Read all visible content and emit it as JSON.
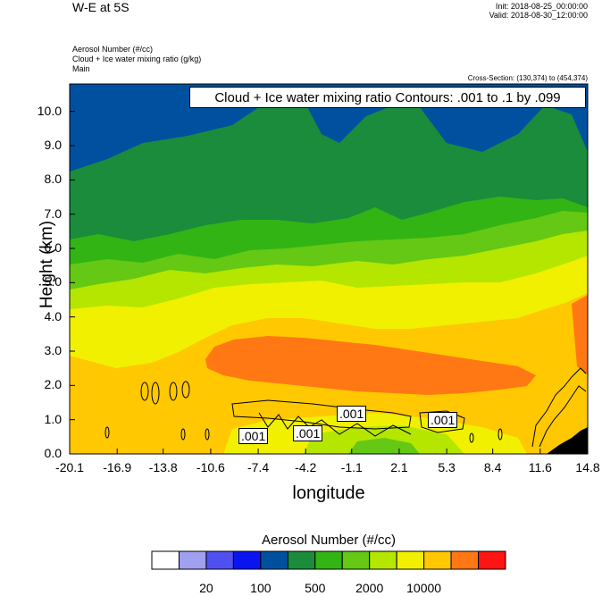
{
  "header": {
    "title": "W-E at 5S",
    "init": "Init: 2018-08-25_00:00:00",
    "valid": "Valid: 2018-08-30_12:00:00",
    "field1": "Aerosol Number   (#/cc)",
    "field2": "Cloud + Ice water mixing ratio   (g/kg)",
    "field3": "Main",
    "cross_section": "Cross-Section: (130,374) to (454,374)"
  },
  "chart_data": {
    "type": "heatmap",
    "title": "Cloud + Ice water mixing ratio Contours: .001 to .1 by .099",
    "xlabel": "longitude",
    "ylabel": "Height (km)",
    "x_ticks": [
      "-20.1",
      "-16.9",
      "-13.8",
      "-10.6",
      "-7.4",
      "-4.2",
      "-1.1",
      "2.1",
      "5.3",
      "8.4",
      "11.6",
      "14.8"
    ],
    "y_ticks": [
      "0.0",
      "1.0",
      "2.0",
      "3.0",
      "4.0",
      "5.0",
      "6.0",
      "7.0",
      "8.0",
      "9.0",
      "10.0"
    ],
    "xlim": [
      -20.1,
      14.8
    ],
    "ylim": [
      0,
      10.8
    ],
    "contour_labels": [
      ".001",
      ".001",
      ".001",
      ".001"
    ],
    "colorbar": {
      "title": "Aerosol Number  (#/cc)",
      "labels": [
        "20",
        "100",
        "500",
        "2000",
        "10000"
      ],
      "colors": [
        "#ffffff",
        "#a0a0f0",
        "#5050f0",
        "#0a14f0",
        "#0050a0",
        "#1a8c3c",
        "#32b414",
        "#64c814",
        "#b4e600",
        "#f0f000",
        "#ffc800",
        "#ff7814",
        "#ff1414"
      ]
    }
  }
}
